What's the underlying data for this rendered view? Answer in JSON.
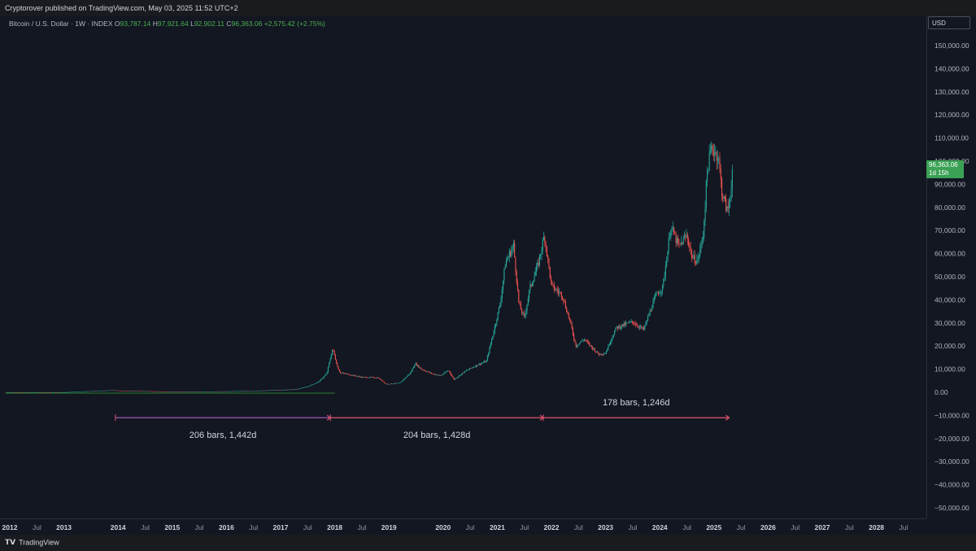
{
  "header": {
    "published_text": "Cryptorover published on TradingView.com, May 03, 2025 11:52 UTC+2"
  },
  "legend": {
    "symbol": "Bitcoin / U.S. Dollar · 1W · INDEX",
    "o_label": "O",
    "o_value": "93,787.14",
    "h_label": "H",
    "h_value": "97,921.64",
    "l_label": "L",
    "l_value": "92,902.11",
    "c_label": "C",
    "c_value": "96,363.06",
    "change": "+2,575.42 (+2.75%)"
  },
  "currency": "USD",
  "last_price": {
    "value": "96,363.06",
    "countdown": "1d 15h"
  },
  "footer": {
    "brand": "TradingView"
  },
  "colors": {
    "up": "#26a69a",
    "down": "#ef5350",
    "measure": "#e0566e",
    "background": "#131722",
    "label_green": "#3ba155"
  },
  "chart_data": {
    "type": "candlestick",
    "title": "Bitcoin / U.S. Dollar · 1W · INDEX",
    "ylim": [
      -52000,
      158000
    ],
    "xlim": [
      2011.8,
      2029.0
    ],
    "y_ticks": [
      150000,
      140000,
      130000,
      120000,
      110000,
      100000,
      90000,
      80000,
      70000,
      60000,
      50000,
      40000,
      30000,
      20000,
      10000,
      0,
      -10000,
      -20000,
      -30000,
      -40000,
      -50000
    ],
    "y_tick_labels": [
      "150,000.00",
      "140,000.00",
      "130,000.00",
      "120,000.00",
      "110,000.00",
      "100,000.00",
      "90,000.00",
      "80,000.00",
      "70,000.00",
      "60,000.00",
      "50,000.00",
      "40,000.00",
      "30,000.00",
      "20,000.00",
      "10,000.00",
      "0.00",
      "−10,000.00",
      "−20,000.00",
      "−30,000.00",
      "−40,000.00",
      "−50,000.00"
    ],
    "x_ticks": [
      {
        "t": 2012.0,
        "label": "2012",
        "bold": true
      },
      {
        "t": 2012.5,
        "label": "Jul",
        "bold": false
      },
      {
        "t": 2013.0,
        "label": "2013",
        "bold": true
      },
      {
        "t": 2014.0,
        "label": "2014",
        "bold": true
      },
      {
        "t": 2014.5,
        "label": "Jul",
        "bold": false
      },
      {
        "t": 2015.0,
        "label": "2015",
        "bold": true
      },
      {
        "t": 2015.5,
        "label": "Jul",
        "bold": false
      },
      {
        "t": 2016.0,
        "label": "2016",
        "bold": true
      },
      {
        "t": 2016.5,
        "label": "Jul",
        "bold": false
      },
      {
        "t": 2017.0,
        "label": "2017",
        "bold": true
      },
      {
        "t": 2017.5,
        "label": "Jul",
        "bold": false
      },
      {
        "t": 2018.0,
        "label": "2018",
        "bold": true
      },
      {
        "t": 2018.5,
        "label": "Jul",
        "bold": false
      },
      {
        "t": 2019.0,
        "label": "2019",
        "bold": true
      },
      {
        "t": 2020.0,
        "label": "2020",
        "bold": true
      },
      {
        "t": 2020.5,
        "label": "Jul",
        "bold": false
      },
      {
        "t": 2021.0,
        "label": "2021",
        "bold": true
      },
      {
        "t": 2021.5,
        "label": "Jul",
        "bold": false
      },
      {
        "t": 2022.0,
        "label": "2022",
        "bold": true
      },
      {
        "t": 2022.5,
        "label": "Jul",
        "bold": false
      },
      {
        "t": 2023.0,
        "label": "2023",
        "bold": true
      },
      {
        "t": 2023.5,
        "label": "Jul",
        "bold": false
      },
      {
        "t": 2024.0,
        "label": "2024",
        "bold": true
      },
      {
        "t": 2024.5,
        "label": "Jul",
        "bold": false
      },
      {
        "t": 2025.0,
        "label": "2025",
        "bold": true
      },
      {
        "t": 2025.5,
        "label": "Jul",
        "bold": false
      },
      {
        "t": 2026.0,
        "label": "2026",
        "bold": true
      },
      {
        "t": 2026.5,
        "label": "Jul",
        "bold": false
      },
      {
        "t": 2027.0,
        "label": "2027",
        "bold": true
      },
      {
        "t": 2027.5,
        "label": "Jul",
        "bold": false
      },
      {
        "t": 2028.0,
        "label": "2028",
        "bold": true
      },
      {
        "t": 2028.5,
        "label": "Jul",
        "bold": false
      }
    ],
    "price_path": [
      [
        2011.8,
        5
      ],
      [
        2013.0,
        15
      ],
      [
        2013.9,
        900
      ],
      [
        2014.1,
        600
      ],
      [
        2014.5,
        550
      ],
      [
        2015.0,
        250
      ],
      [
        2015.5,
        250
      ],
      [
        2016.0,
        420
      ],
      [
        2016.5,
        650
      ],
      [
        2017.0,
        1000
      ],
      [
        2017.3,
        1300
      ],
      [
        2017.5,
        2500
      ],
      [
        2017.7,
        4500
      ],
      [
        2017.85,
        8000
      ],
      [
        2017.96,
        19000
      ],
      [
        2018.05,
        11000
      ],
      [
        2018.1,
        8500
      ],
      [
        2018.3,
        7500
      ],
      [
        2018.5,
        6500
      ],
      [
        2018.8,
        6300
      ],
      [
        2018.95,
        3500
      ],
      [
        2019.2,
        4000
      ],
      [
        2019.4,
        8500
      ],
      [
        2019.48,
        12500
      ],
      [
        2019.6,
        10000
      ],
      [
        2019.8,
        8000
      ],
      [
        2019.95,
        7200
      ],
      [
        2020.1,
        9500
      ],
      [
        2020.2,
        5500
      ],
      [
        2020.4,
        9000
      ],
      [
        2020.6,
        11500
      ],
      [
        2020.8,
        13500
      ],
      [
        2020.95,
        28000
      ],
      [
        2021.05,
        38000
      ],
      [
        2021.15,
        56000
      ],
      [
        2021.3,
        63500
      ],
      [
        2021.4,
        38000
      ],
      [
        2021.5,
        32000
      ],
      [
        2021.6,
        45000
      ],
      [
        2021.75,
        55000
      ],
      [
        2021.87,
        68000
      ],
      [
        2022.0,
        46000
      ],
      [
        2022.2,
        42000
      ],
      [
        2022.35,
        30000
      ],
      [
        2022.45,
        20000
      ],
      [
        2022.6,
        23000
      ],
      [
        2022.87,
        16500
      ],
      [
        2023.0,
        17000
      ],
      [
        2023.1,
        23000
      ],
      [
        2023.2,
        28000
      ],
      [
        2023.5,
        30500
      ],
      [
        2023.7,
        27000
      ],
      [
        2023.85,
        37000
      ],
      [
        2023.95,
        43000
      ],
      [
        2024.05,
        45000
      ],
      [
        2024.15,
        62000
      ],
      [
        2024.2,
        72000
      ],
      [
        2024.35,
        63000
      ],
      [
        2024.5,
        68000
      ],
      [
        2024.6,
        58000
      ],
      [
        2024.7,
        57000
      ],
      [
        2024.8,
        68000
      ],
      [
        2024.88,
        97000
      ],
      [
        2024.96,
        106000
      ],
      [
        2025.08,
        102000
      ],
      [
        2025.15,
        86000
      ],
      [
        2025.25,
        78000
      ],
      [
        2025.3,
        85000
      ],
      [
        2025.34,
        96363
      ]
    ],
    "ohlc_last": {
      "open": 93787.14,
      "high": 97921.64,
      "low": 92902.11,
      "close": 96363.06
    },
    "measurements": [
      {
        "from": 2013.95,
        "to": 2017.92,
        "label": "206 bars, 1,442d",
        "label_pos": "below"
      },
      {
        "from": 2017.92,
        "to": 2021.85,
        "label": "204 bars, 1,428d",
        "label_pos": "below"
      },
      {
        "from": 2021.85,
        "to": 2025.28,
        "label": "178 bars, 1,246d",
        "label_pos": "above"
      }
    ],
    "measure_level": -11000
  }
}
